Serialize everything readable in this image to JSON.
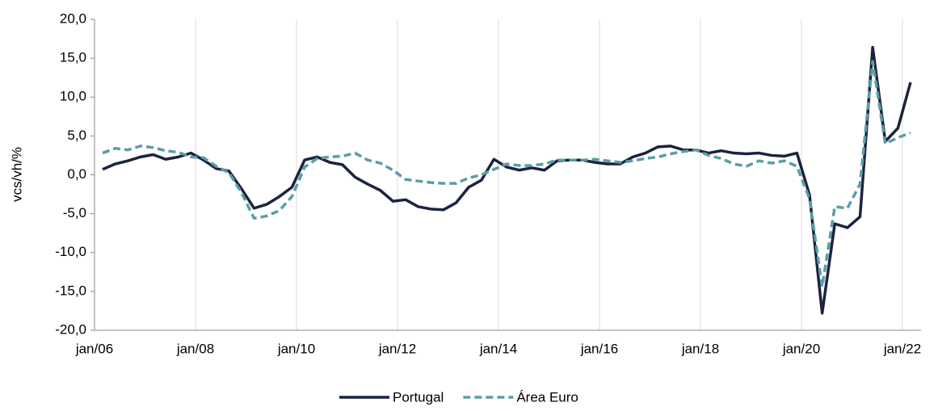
{
  "chart_data": {
    "type": "line",
    "ylabel": "vcs/vh/%",
    "categories": [
      "jan/06",
      null,
      null,
      null,
      null,
      null,
      null,
      null,
      "jan/08",
      null,
      null,
      null,
      null,
      null,
      null,
      null,
      "jan/10",
      null,
      null,
      null,
      null,
      null,
      null,
      null,
      "jan/12",
      null,
      null,
      null,
      null,
      null,
      null,
      null,
      "jan/14",
      null,
      null,
      null,
      null,
      null,
      null,
      null,
      "jan/16",
      null,
      null,
      null,
      null,
      null,
      null,
      null,
      "jan/18",
      null,
      null,
      null,
      null,
      null,
      null,
      null,
      "jan/20",
      null,
      null,
      null,
      null,
      null,
      null,
      null,
      "jan/22"
    ],
    "series": [
      {
        "name": "Portugal",
        "color": "#1c2340",
        "dash": false,
        "values": [
          0.7,
          1.4,
          1.8,
          2.3,
          2.6,
          2.0,
          2.3,
          2.8,
          1.9,
          0.8,
          0.5,
          -1.8,
          -4.3,
          -3.8,
          -2.8,
          -1.6,
          1.9,
          2.3,
          1.6,
          1.3,
          -0.3,
          -1.2,
          -2.0,
          -3.4,
          -3.2,
          -4.1,
          -4.4,
          -4.5,
          -3.6,
          -1.6,
          -0.7,
          2.0,
          1.0,
          0.6,
          0.9,
          0.6,
          1.8,
          1.9,
          1.9,
          1.6,
          1.4,
          1.4,
          2.3,
          2.8,
          3.6,
          3.7,
          3.2,
          3.2,
          2.8,
          3.1,
          2.8,
          2.7,
          2.8,
          2.5,
          2.4,
          2.8,
          -2.6,
          -17.8,
          -6.3,
          -6.8,
          -5.4,
          16.4,
          4.3,
          6.0,
          11.9
        ]
      },
      {
        "name": "Área Euro",
        "color": "#5a9ea6",
        "dash": true,
        "values": [
          2.8,
          3.4,
          3.2,
          3.7,
          3.5,
          3.1,
          2.9,
          2.3,
          2.2,
          1.1,
          0.3,
          -2.3,
          -5.6,
          -5.3,
          -4.6,
          -2.8,
          1.0,
          2.1,
          2.3,
          2.4,
          2.8,
          1.9,
          1.5,
          0.6,
          -0.6,
          -0.8,
          -1.0,
          -1.1,
          -1.1,
          -0.4,
          0.0,
          0.7,
          1.4,
          1.2,
          1.2,
          1.4,
          1.9,
          1.9,
          1.9,
          2.0,
          1.8,
          1.6,
          1.8,
          2.1,
          2.3,
          2.7,
          3.0,
          3.2,
          2.5,
          2.1,
          1.4,
          1.1,
          1.8,
          1.5,
          1.8,
          1.1,
          -3.1,
          -14.4,
          -4.1,
          -4.3,
          -1.2,
          14.6,
          4.0,
          4.8,
          5.4
        ]
      }
    ],
    "ylim": [
      -20,
      20
    ],
    "yticks": [
      {
        "value": -20,
        "label": "-20,0"
      },
      {
        "value": -15,
        "label": "-15,0"
      },
      {
        "value": -10,
        "label": "-10,0"
      },
      {
        "value": -5,
        "label": "-5,0"
      },
      {
        "value": 0,
        "label": "0,0"
      },
      {
        "value": 5,
        "label": "5,0"
      },
      {
        "value": 10,
        "label": "10,0"
      },
      {
        "value": 15,
        "label": "15,0"
      },
      {
        "value": 20,
        "label": "20,0"
      }
    ],
    "grid": true,
    "legend": "bottom"
  }
}
